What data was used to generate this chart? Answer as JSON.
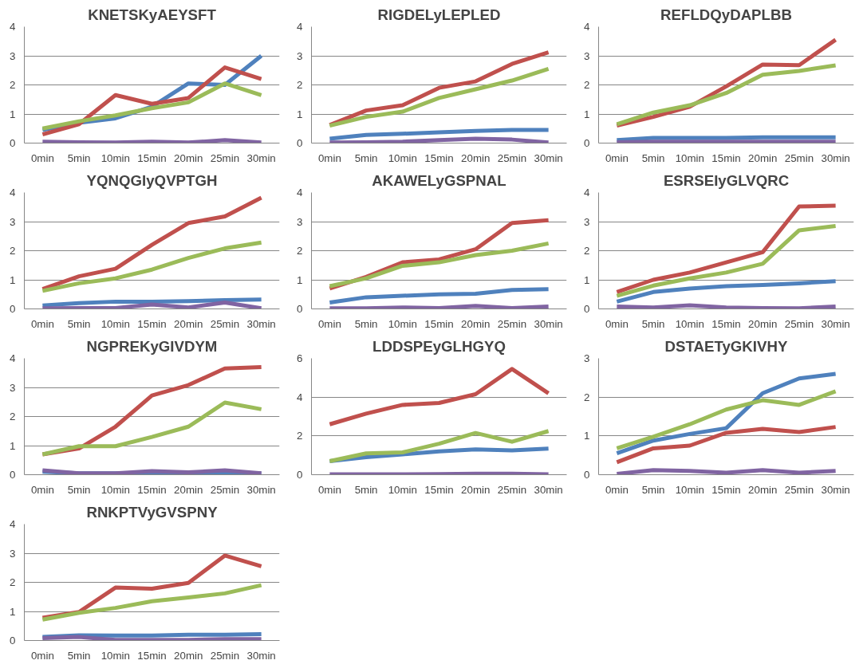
{
  "chart_data": [
    {
      "type": "line",
      "title": "KNETSKyAEYSFT",
      "categories": [
        "0min",
        "5min",
        "10min",
        "15min",
        "20min",
        "25min",
        "30min"
      ],
      "ylim": [
        0,
        4
      ],
      "yticks": [
        0,
        1,
        2,
        3,
        4
      ],
      "grid": "y",
      "line_style": "solid",
      "series": [
        {
          "color": "#4f81bd",
          "values": [
            0.45,
            0.7,
            0.85,
            1.25,
            2.05,
            2.0,
            3.0
          ]
        },
        {
          "color": "#c0504d",
          "values": [
            0.3,
            0.65,
            1.65,
            1.35,
            1.55,
            2.6,
            2.2
          ]
        },
        {
          "color": "#9bbb59",
          "values": [
            0.5,
            0.75,
            0.95,
            1.2,
            1.4,
            2.05,
            1.65
          ]
        },
        {
          "color": "#8064a2",
          "values": [
            0.05,
            0.03,
            0.02,
            0.05,
            0.02,
            0.1,
            0.02
          ]
        }
      ]
    },
    {
      "type": "line",
      "title": "RIGDELyLEPLED",
      "categories": [
        "0min",
        "5min",
        "10min",
        "15min",
        "20min",
        "25min",
        "30min"
      ],
      "ylim": [
        0,
        4
      ],
      "yticks": [
        0,
        1,
        2,
        3,
        4
      ],
      "grid": "y",
      "line_style": "solid",
      "series": [
        {
          "color": "#4f81bd",
          "values": [
            0.15,
            0.28,
            0.32,
            0.37,
            0.42,
            0.45,
            0.45
          ]
        },
        {
          "color": "#c0504d",
          "values": [
            0.62,
            1.12,
            1.3,
            1.9,
            2.12,
            2.72,
            3.12
          ]
        },
        {
          "color": "#9bbb59",
          "values": [
            0.6,
            0.9,
            1.08,
            1.55,
            1.85,
            2.15,
            2.55
          ]
        },
        {
          "color": "#8064a2",
          "values": [
            0.02,
            0.03,
            0.05,
            0.1,
            0.15,
            0.12,
            0.02
          ]
        }
      ]
    },
    {
      "type": "line",
      "title": "REFLDQyDAPLBB",
      "categories": [
        "0min",
        "5min",
        "10min",
        "15min",
        "20min",
        "25min",
        "30min"
      ],
      "ylim": [
        0,
        4
      ],
      "yticks": [
        0,
        1,
        2,
        3,
        4
      ],
      "grid": "y",
      "line_style": "solid",
      "series": [
        {
          "color": "#4f81bd",
          "values": [
            0.1,
            0.18,
            0.18,
            0.18,
            0.2,
            0.2,
            0.2
          ]
        },
        {
          "color": "#c0504d",
          "values": [
            0.6,
            0.9,
            1.25,
            1.95,
            2.7,
            2.68,
            3.55
          ]
        },
        {
          "color": "#9bbb59",
          "values": [
            0.65,
            1.05,
            1.3,
            1.72,
            2.35,
            2.48,
            2.67
          ]
        },
        {
          "color": "#8064a2",
          "values": [
            0.03,
            0.05,
            0.05,
            0.05,
            0.05,
            0.05,
            0.05
          ]
        }
      ]
    },
    {
      "type": "line",
      "title": "YQNQGIyQVPTGH",
      "categories": [
        "0min",
        "5min",
        "10min",
        "15min",
        "20min",
        "25min",
        "30min"
      ],
      "ylim": [
        0,
        4
      ],
      "yticks": [
        0,
        1,
        2,
        3,
        4
      ],
      "grid": "y",
      "line_style": "solid",
      "series": [
        {
          "color": "#4f81bd",
          "values": [
            0.12,
            0.2,
            0.25,
            0.25,
            0.27,
            0.3,
            0.32
          ]
        },
        {
          "color": "#c0504d",
          "values": [
            0.68,
            1.12,
            1.38,
            2.2,
            2.95,
            3.18,
            3.82
          ]
        },
        {
          "color": "#9bbb59",
          "values": [
            0.62,
            0.88,
            1.05,
            1.35,
            1.75,
            2.08,
            2.28
          ]
        },
        {
          "color": "#8064a2",
          "values": [
            0.02,
            0.03,
            0.03,
            0.15,
            0.05,
            0.22,
            0.02
          ]
        }
      ]
    },
    {
      "type": "line",
      "title": "AKAWELyGSPNAL",
      "categories": [
        "0min",
        "5min",
        "10min",
        "15min",
        "20min",
        "25min",
        "30min"
      ],
      "ylim": [
        0,
        4
      ],
      "yticks": [
        0,
        1,
        2,
        3,
        4
      ],
      "grid": "y",
      "line_style": "solid",
      "series": [
        {
          "color": "#4f81bd",
          "values": [
            0.22,
            0.4,
            0.45,
            0.5,
            0.52,
            0.65,
            0.68
          ]
        },
        {
          "color": "#c0504d",
          "values": [
            0.7,
            1.1,
            1.6,
            1.7,
            2.05,
            2.95,
            3.05
          ]
        },
        {
          "color": "#9bbb59",
          "values": [
            0.78,
            1.05,
            1.48,
            1.6,
            1.85,
            2.0,
            2.25
          ]
        },
        {
          "color": "#8064a2",
          "values": [
            0.02,
            0.02,
            0.05,
            0.03,
            0.1,
            0.03,
            0.08
          ]
        }
      ]
    },
    {
      "type": "line",
      "title": "ESRSEIyGLVQRC",
      "categories": [
        "0min",
        "5min",
        "10min",
        "15min",
        "20min",
        "25min",
        "30min"
      ],
      "ylim": [
        0,
        4
      ],
      "yticks": [
        0,
        1,
        2,
        3,
        4
      ],
      "grid": "y",
      "line_style": "solid",
      "series": [
        {
          "color": "#4f81bd",
          "values": [
            0.25,
            0.58,
            0.7,
            0.78,
            0.82,
            0.88,
            0.95
          ]
        },
        {
          "color": "#c0504d",
          "values": [
            0.58,
            1.0,
            1.25,
            1.6,
            1.95,
            3.52,
            3.55
          ]
        },
        {
          "color": "#9bbb59",
          "values": [
            0.45,
            0.8,
            1.05,
            1.25,
            1.55,
            2.7,
            2.85
          ]
        },
        {
          "color": "#8064a2",
          "values": [
            0.08,
            0.05,
            0.12,
            0.05,
            0.03,
            0.02,
            0.08
          ]
        }
      ]
    },
    {
      "type": "line",
      "title": "NGPREKyGIVDYM",
      "categories": [
        "0min",
        "5min",
        "10min",
        "15min",
        "20min",
        "25min",
        "30min"
      ],
      "ylim": [
        0,
        4
      ],
      "yticks": [
        0,
        1,
        2,
        3,
        4
      ],
      "grid": "y",
      "line_style": "solid",
      "series": [
        {
          "color": "#4f81bd",
          "values": [
            0.1,
            0.05,
            0.05,
            0.07,
            0.05,
            0.05,
            0.05
          ]
        },
        {
          "color": "#c0504d",
          "values": [
            0.7,
            0.9,
            1.65,
            2.72,
            3.08,
            3.65,
            3.7
          ]
        },
        {
          "color": "#9bbb59",
          "values": [
            0.7,
            0.98,
            0.98,
            1.3,
            1.65,
            2.48,
            2.25
          ]
        },
        {
          "color": "#8064a2",
          "values": [
            0.15,
            0.05,
            0.05,
            0.12,
            0.08,
            0.15,
            0.05
          ]
        }
      ]
    },
    {
      "type": "line",
      "title": "LDDSPEyGLHGYQ",
      "categories": [
        "0min",
        "5min",
        "10min",
        "15min",
        "20min",
        "25min",
        "30min"
      ],
      "ylim": [
        0,
        6
      ],
      "yticks": [
        0,
        2,
        4,
        6
      ],
      "grid": "y",
      "line_style": "solid",
      "series": [
        {
          "color": "#4f81bd",
          "values": [
            0.7,
            0.9,
            1.05,
            1.2,
            1.3,
            1.25,
            1.35
          ]
        },
        {
          "color": "#c0504d",
          "values": [
            2.6,
            3.15,
            3.6,
            3.7,
            4.15,
            5.45,
            4.2
          ]
        },
        {
          "color": "#9bbb59",
          "values": [
            0.7,
            1.1,
            1.15,
            1.6,
            2.15,
            1.7,
            2.25
          ]
        },
        {
          "color": "#8064a2",
          "values": [
            0.02,
            0.02,
            0.02,
            0.03,
            0.05,
            0.05,
            0.02
          ]
        }
      ]
    },
    {
      "type": "line",
      "title": "DSTAETyGKIVHY",
      "categories": [
        "0min",
        "5min",
        "10min",
        "15min",
        "20min",
        "25min",
        "30min"
      ],
      "ylim": [
        0,
        3
      ],
      "yticks": [
        0,
        1,
        2,
        3
      ],
      "grid": "y",
      "line_style": "solid",
      "series": [
        {
          "color": "#4f81bd",
          "values": [
            0.55,
            0.88,
            1.05,
            1.2,
            2.1,
            2.48,
            2.6
          ]
        },
        {
          "color": "#c0504d",
          "values": [
            0.32,
            0.68,
            0.75,
            1.08,
            1.18,
            1.1,
            1.23
          ]
        },
        {
          "color": "#9bbb59",
          "values": [
            0.68,
            0.98,
            1.3,
            1.68,
            1.92,
            1.8,
            2.15
          ]
        },
        {
          "color": "#8064a2",
          "values": [
            0.02,
            0.12,
            0.1,
            0.05,
            0.12,
            0.05,
            0.1
          ]
        }
      ]
    },
    {
      "type": "line",
      "title": "RNKPTVyGVSPNY",
      "categories": [
        "0min",
        "5min",
        "10min",
        "15min",
        "20min",
        "25min",
        "30min"
      ],
      "ylim": [
        0,
        4
      ],
      "yticks": [
        0,
        1,
        2,
        3,
        4
      ],
      "grid": "y",
      "line_style": "solid",
      "series": [
        {
          "color": "#4f81bd",
          "values": [
            0.12,
            0.18,
            0.17,
            0.17,
            0.2,
            0.2,
            0.22
          ]
        },
        {
          "color": "#c0504d",
          "values": [
            0.78,
            0.98,
            1.82,
            1.78,
            1.98,
            2.92,
            2.55
          ]
        },
        {
          "color": "#9bbb59",
          "values": [
            0.72,
            0.95,
            1.12,
            1.35,
            1.48,
            1.62,
            1.9
          ]
        },
        {
          "color": "#8064a2",
          "values": [
            0.08,
            0.12,
            0.02,
            0.02,
            0.02,
            0.05,
            0.05
          ]
        }
      ]
    }
  ]
}
